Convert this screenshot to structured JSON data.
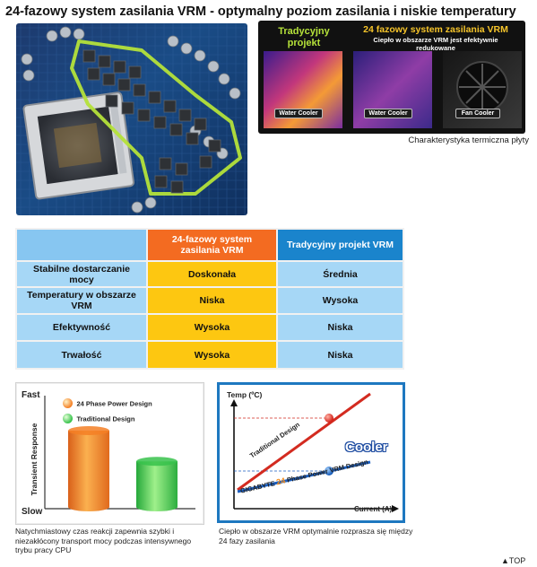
{
  "title": "24-fazowy system zasilania VRM - optymalny poziom zasilania i niskie temperatury",
  "thermal": {
    "traditional_heading": "Tradycyjny projekt",
    "vrm_heading": "24 fazowy system zasilania VRM",
    "vrm_subheading": "Ciepło w obszarze VRM jest efektywnie redukowane",
    "labels": [
      "Water Cooler",
      "Water Cooler",
      "Fan Cooler"
    ],
    "caption": "Charakterystyka termiczna płyty"
  },
  "table": {
    "col_a": "24-fazowy system zasilania VRM",
    "col_b": "Tradycyjny projekt VRM",
    "rows": [
      {
        "label": "Stabilne dostarczanie mocy",
        "a": "Doskonała",
        "b": "Średnia"
      },
      {
        "label": "Temperatury w obszarze VRM",
        "a": "Niska",
        "b": "Wysoka"
      },
      {
        "label": "Efektywność",
        "a": "Wysoka",
        "b": "Niska"
      },
      {
        "label": "Trwałość",
        "a": "Wysoka",
        "b": "Niska"
      }
    ]
  },
  "chart1": {
    "y_top": "Fast",
    "y_bottom": "Slow",
    "y_axis": "Transient Response",
    "legend": [
      "24 Phase Power Design",
      "Traditional Design"
    ],
    "values": [
      0.72,
      0.43
    ],
    "colors": [
      "#f47f24",
      "#37c24b"
    ]
  },
  "chart2": {
    "y_axis": "Temp (ºC)",
    "x_axis": "Current (A)",
    "traditional_label": "Traditional Design",
    "cooler_label": "Cooler",
    "brand": "GIGABYTE",
    "phase_number": "24",
    "phase_label": "Phase Power VRM Design"
  },
  "captions": {
    "chart1": "Natychmiastowy czas reakcji zapewnia szybki i niezakłócony transport mocy podczas intensywnego trybu pracy CPU",
    "chart2": "Ciepło w obszarze VRM optymalnie rozprasza się między 24 fazy zasilania"
  },
  "top_link": "▲TOP"
}
